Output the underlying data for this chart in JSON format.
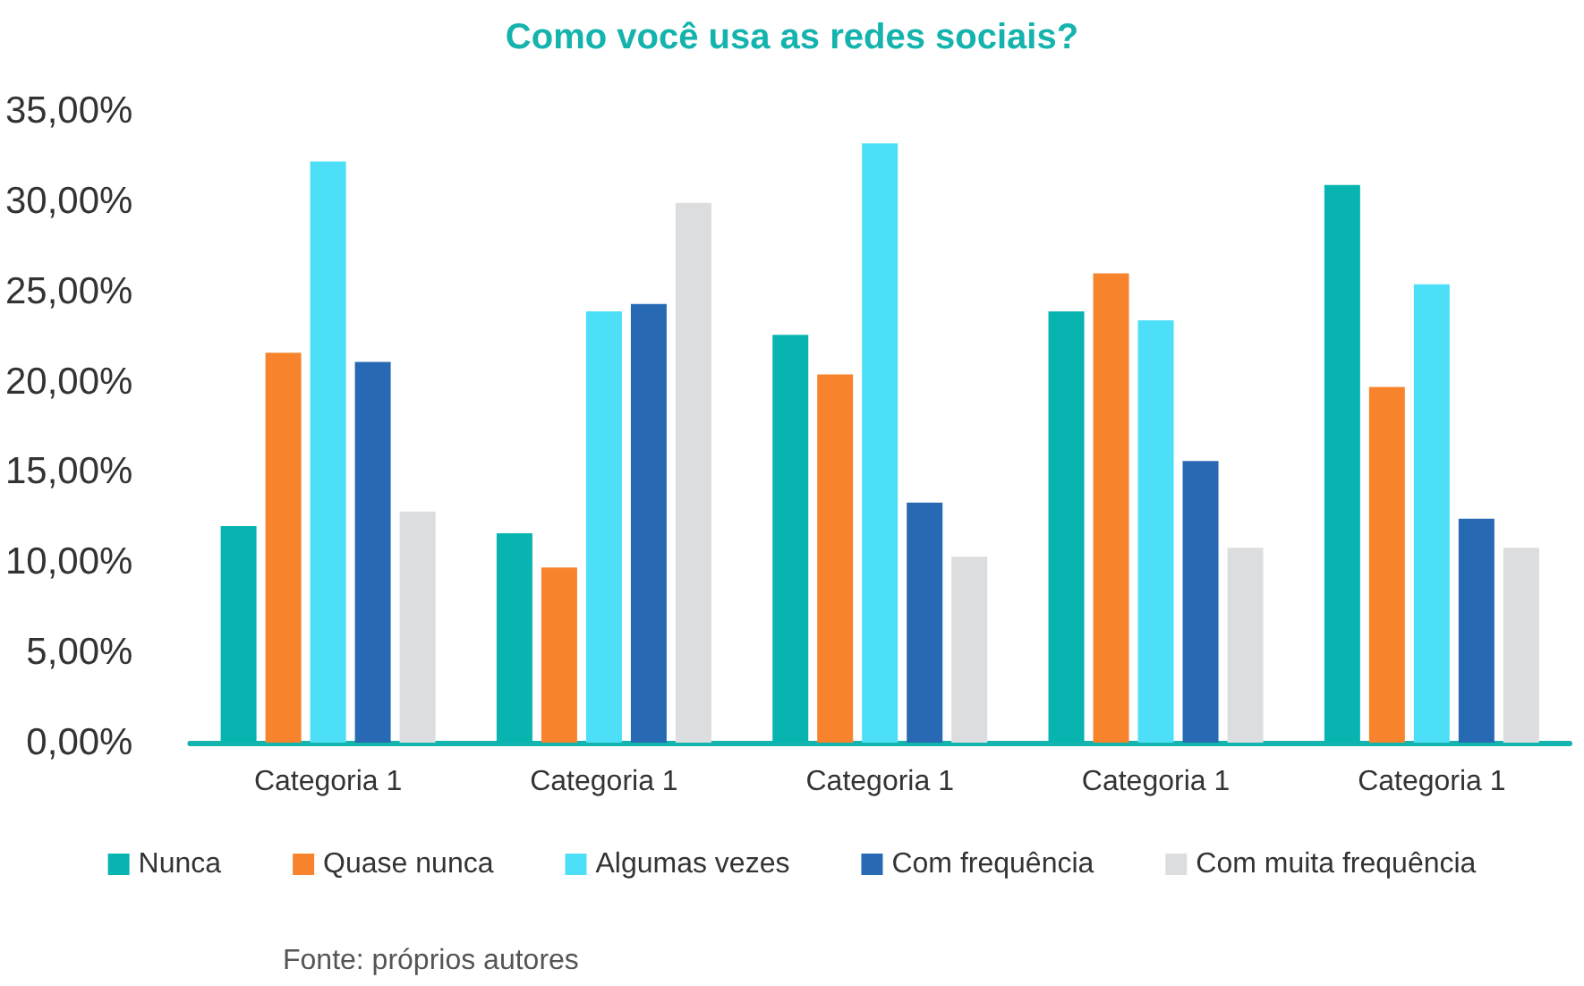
{
  "chart_data": {
    "type": "bar",
    "title": "Como você usa as redes sociais?",
    "categories": [
      "Categoria 1",
      "Categoria 1",
      "Categoria 1",
      "Categoria 1",
      "Categoria 1"
    ],
    "series": [
      {
        "name": "Nunca",
        "color": "#07b4b0",
        "values": [
          12.0,
          11.6,
          22.6,
          23.9,
          30.9
        ]
      },
      {
        "name": "Quase nunca",
        "color": "#f7842d",
        "values": [
          21.6,
          9.7,
          20.4,
          26.0,
          19.7
        ]
      },
      {
        "name": "Algumas vezes",
        "color": "#4ddff8",
        "values": [
          32.2,
          23.9,
          33.2,
          23.4,
          25.4
        ]
      },
      {
        "name": "Com frequência",
        "color": "#2869b3",
        "values": [
          21.1,
          24.3,
          13.3,
          15.6,
          12.4
        ]
      },
      {
        "name": "Com muita frequência",
        "color": "#dcdddf",
        "values": [
          12.8,
          29.9,
          10.3,
          10.8,
          10.8
        ]
      }
    ],
    "ylim": [
      0,
      35
    ],
    "yticks": [
      {
        "value": 0,
        "label": "0,00%"
      },
      {
        "value": 5,
        "label": "5,00%"
      },
      {
        "value": 10,
        "label": "10,00%"
      },
      {
        "value": 15,
        "label": "15,00%"
      },
      {
        "value": 20,
        "label": "20,00%"
      },
      {
        "value": 25,
        "label": "25,00%"
      },
      {
        "value": 30,
        "label": "30,00%"
      },
      {
        "value": 35,
        "label": "35,00%"
      }
    ],
    "grid": false,
    "legend": "bottom",
    "annotations": [
      "Fonte: próprios autores"
    ]
  }
}
